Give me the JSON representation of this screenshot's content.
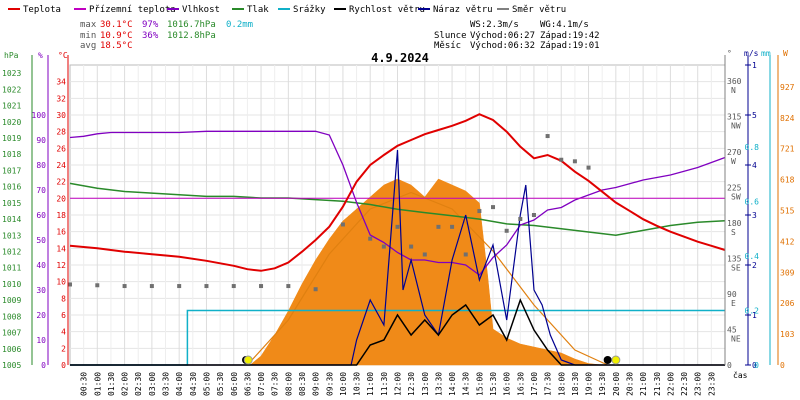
{
  "chart_data": {
    "type": "line",
    "title": "4.9.2024",
    "legend": [
      {
        "key": "teplota",
        "label": "Teplota",
        "color": "#e00000"
      },
      {
        "key": "prizemni",
        "label": "Přízemní teplota",
        "color": "#c000c0"
      },
      {
        "key": "vlhkost",
        "label": "Vlhkost",
        "color": "#8000c0"
      },
      {
        "key": "tlak",
        "label": "Tlak",
        "color": "#2a8a2a"
      },
      {
        "key": "srazky",
        "label": "Srážky",
        "color": "#10b0c8"
      },
      {
        "key": "rychlost",
        "label": "Rychlost větru",
        "color": "#000000"
      },
      {
        "key": "naraz",
        "label": "Náraz větru",
        "color": "#000090"
      },
      {
        "key": "smer",
        "label": "Směr větru",
        "color": "#808080"
      }
    ],
    "stats": {
      "max_label": "max",
      "max_temp": "30.1°C",
      "max_hum": "97%",
      "max_press": "1016.7hPa",
      "max_rain": "0.2mm",
      "min_label": "min",
      "min_temp": "10.9°C",
      "min_hum": "36%",
      "min_press": "1012.8hPa",
      "avg_label": "avg",
      "avg_temp": "18.5°C",
      "ws": "WS:2.3m/s",
      "wg": "WG:4.1m/s",
      "slunce": "Slunce",
      "slunce_rise": "Východ:06:27",
      "slunce_set": "Západ:19:42",
      "mesic": "Měsíc",
      "mesic_rise": "Východ:06:32",
      "mesic_set": "Západ:19:01"
    },
    "axes": {
      "hpa_label": "hPa",
      "pct_label": "%",
      "c_label": "°C",
      "hpa_ticks": [
        "1023",
        "1022",
        "1021",
        "1020",
        "1019",
        "1018",
        "1017",
        "1016",
        "1015",
        "1014",
        "1013",
        "1012",
        "1011",
        "1010",
        "1009",
        "1008",
        "1007",
        "1006",
        "1005"
      ],
      "pct_ticks": [
        "100",
        "90",
        "80",
        "70",
        "60",
        "50",
        "40",
        "30",
        "20",
        "10",
        "0"
      ],
      "c_ticks": [
        "34",
        "32",
        "30",
        "28",
        "26",
        "24",
        "22",
        "20",
        "18",
        "16",
        "14",
        "12",
        "10",
        "8",
        "6",
        "4",
        "2",
        "0"
      ],
      "deg_label": "°",
      "ms_label": "m/s",
      "mm_label": "mm",
      "w_label": "W",
      "dir_values": [
        360,
        315,
        270,
        225,
        180,
        135,
        90,
        45,
        0
      ],
      "dir_names": [
        "N",
        "NW",
        "W",
        "SW",
        "S",
        "SE",
        "E",
        "NE",
        ""
      ],
      "ms_ticks": [
        "1",
        "5",
        "4",
        "3",
        "2",
        "1",
        "0"
      ],
      "mm_ticks": [
        "~1",
        "0.8",
        "0.6",
        "0.4",
        "0.2",
        "0"
      ],
      "w_ticks": [
        "927",
        "824",
        "721",
        "618",
        "515",
        "412",
        "309",
        "206",
        "103",
        "0"
      ],
      "x_ticks": [
        "00:30",
        "01:00",
        "01:30",
        "02:00",
        "02:30",
        "03:00",
        "03:30",
        "04:00",
        "04:30",
        "05:00",
        "05:30",
        "06:00",
        "06:30",
        "07:00",
        "07:30",
        "08:00",
        "08:30",
        "09:00",
        "09:30",
        "10:00",
        "10:30",
        "11:00",
        "11:30",
        "12:00",
        "12:30",
        "13:00",
        "13:30",
        "14:00",
        "14:30",
        "15:00",
        "15:30",
        "16:00",
        "16:30",
        "17:00",
        "17:30",
        "18:00",
        "18:30",
        "19:00",
        "19:30",
        "20:00",
        "20:30",
        "21:00",
        "21:30",
        "22:00",
        "22:30",
        "23:00",
        "23:30"
      ],
      "x_label": "čas"
    },
    "series": {
      "teplota": [
        [
          0,
          14.3
        ],
        [
          1,
          14.0
        ],
        [
          2,
          13.6
        ],
        [
          3,
          13.3
        ],
        [
          4,
          13.0
        ],
        [
          5,
          12.5
        ],
        [
          6,
          11.9
        ],
        [
          6.5,
          11.5
        ],
        [
          7,
          11.3
        ],
        [
          7.5,
          11.6
        ],
        [
          8,
          12.3
        ],
        [
          8.5,
          13.6
        ],
        [
          9,
          15.0
        ],
        [
          9.5,
          16.6
        ],
        [
          10,
          19.0
        ],
        [
          10.5,
          22.0
        ],
        [
          11,
          24.0
        ],
        [
          11.5,
          25.2
        ],
        [
          12,
          26.3
        ],
        [
          12.5,
          27.0
        ],
        [
          13,
          27.7
        ],
        [
          13.5,
          28.2
        ],
        [
          14,
          28.7
        ],
        [
          14.5,
          29.3
        ],
        [
          15,
          30.1
        ],
        [
          15.5,
          29.4
        ],
        [
          16,
          28.0
        ],
        [
          16.5,
          26.2
        ],
        [
          17,
          24.8
        ],
        [
          17.5,
          25.2
        ],
        [
          18,
          24.5
        ],
        [
          18.5,
          23.2
        ],
        [
          19,
          22.1
        ],
        [
          19.5,
          20.8
        ],
        [
          20,
          19.5
        ],
        [
          20.5,
          18.5
        ],
        [
          21,
          17.5
        ],
        [
          21.5,
          16.7
        ],
        [
          22,
          16.0
        ],
        [
          22.5,
          15.4
        ],
        [
          23,
          14.8
        ],
        [
          23.5,
          14.3
        ],
        [
          24,
          13.8
        ]
      ],
      "prizemni": [
        [
          0,
          20
        ],
        [
          24,
          20
        ]
      ],
      "vlhkost": [
        [
          0,
          91
        ],
        [
          0.5,
          91.5
        ],
        [
          1,
          92.5
        ],
        [
          1.5,
          93
        ],
        [
          2,
          93
        ],
        [
          2.5,
          93
        ],
        [
          3,
          93
        ],
        [
          4,
          93
        ],
        [
          5,
          93.5
        ],
        [
          6,
          93.5
        ],
        [
          7,
          93.5
        ],
        [
          8,
          93.5
        ],
        [
          9,
          93.5
        ],
        [
          9.5,
          92
        ],
        [
          10,
          80
        ],
        [
          10.5,
          65
        ],
        [
          11,
          52
        ],
        [
          11.5,
          49
        ],
        [
          12,
          45
        ],
        [
          12.5,
          42
        ],
        [
          13,
          42
        ],
        [
          13.5,
          41
        ],
        [
          14,
          41
        ],
        [
          14.5,
          40
        ],
        [
          15,
          36
        ],
        [
          15.5,
          43
        ],
        [
          16,
          48
        ],
        [
          16.5,
          56
        ],
        [
          17,
          58
        ],
        [
          17.5,
          62
        ],
        [
          18,
          63
        ],
        [
          18.5,
          66
        ],
        [
          19,
          68
        ],
        [
          19.5,
          70
        ],
        [
          20,
          71
        ],
        [
          20.5,
          72.5
        ],
        [
          21,
          74
        ],
        [
          21.5,
          75
        ],
        [
          22,
          76
        ],
        [
          22.5,
          77.5
        ],
        [
          23,
          79
        ],
        [
          23.5,
          81
        ],
        [
          24,
          83
        ]
      ],
      "tlak": [
        [
          0,
          1016.2
        ],
        [
          1,
          1015.9
        ],
        [
          2,
          1015.7
        ],
        [
          3,
          1015.6
        ],
        [
          4,
          1015.5
        ],
        [
          5,
          1015.4
        ],
        [
          6,
          1015.4
        ],
        [
          7,
          1015.3
        ],
        [
          8,
          1015.3
        ],
        [
          9,
          1015.2
        ],
        [
          10,
          1015.1
        ],
        [
          11,
          1014.9
        ],
        [
          12,
          1014.6
        ],
        [
          13,
          1014.4
        ],
        [
          14,
          1014.2
        ],
        [
          15,
          1014.0
        ],
        [
          16,
          1013.7
        ],
        [
          17,
          1013.6
        ],
        [
          18,
          1013.4
        ],
        [
          19,
          1013.2
        ],
        [
          20,
          1013.0
        ],
        [
          21,
          1013.3
        ],
        [
          22,
          1013.6
        ],
        [
          23,
          1013.8
        ],
        [
          24,
          1013.9
        ]
      ],
      "srazky_mm": [
        [
          0,
          0
        ],
        [
          4.3,
          0
        ],
        [
          4.3,
          0.2
        ],
        [
          24,
          0.2
        ]
      ],
      "naraz_ms": [
        [
          0,
          0
        ],
        [
          10.3,
          0
        ],
        [
          10.5,
          0.5
        ],
        [
          11,
          1.3
        ],
        [
          11.5,
          0.8
        ],
        [
          12,
          4.3
        ],
        [
          12.2,
          1.5
        ],
        [
          12.5,
          2.1
        ],
        [
          13,
          1.0
        ],
        [
          13.5,
          0.6
        ],
        [
          14,
          2.1
        ],
        [
          14.5,
          3.0
        ],
        [
          15,
          1.7
        ],
        [
          15.5,
          2.4
        ],
        [
          16,
          0.9
        ],
        [
          16.5,
          3.0
        ],
        [
          16.7,
          3.6
        ],
        [
          17,
          1.5
        ],
        [
          17.3,
          1.2
        ],
        [
          17.6,
          0.6
        ],
        [
          18,
          0.1
        ],
        [
          18.5,
          0
        ],
        [
          24,
          0
        ]
      ],
      "rychlost_ms": [
        [
          0,
          0
        ],
        [
          10.5,
          0
        ],
        [
          11,
          0.4
        ],
        [
          11.5,
          0.5
        ],
        [
          12,
          1.0
        ],
        [
          12.5,
          0.6
        ],
        [
          13,
          0.9
        ],
        [
          13.5,
          0.6
        ],
        [
          14,
          1.0
        ],
        [
          14.5,
          1.2
        ],
        [
          15,
          0.8
        ],
        [
          15.5,
          1.0
        ],
        [
          16,
          0.5
        ],
        [
          16.5,
          1.3
        ],
        [
          17,
          0.7
        ],
        [
          17.5,
          0.3
        ],
        [
          18,
          0
        ],
        [
          24,
          0
        ]
      ],
      "smer_deg": [
        [
          0,
          102
        ],
        [
          1,
          101
        ],
        [
          2,
          100
        ],
        [
          3,
          100
        ],
        [
          4,
          100
        ],
        [
          5,
          100
        ],
        [
          6,
          100
        ],
        [
          7,
          100
        ],
        [
          8,
          100
        ],
        [
          9,
          96
        ],
        [
          10,
          178
        ],
        [
          11,
          160
        ],
        [
          11.5,
          150
        ],
        [
          12,
          175
        ],
        [
          12.5,
          150
        ],
        [
          13,
          140
        ],
        [
          13.5,
          175
        ],
        [
          14,
          175
        ],
        [
          14.5,
          140
        ],
        [
          15,
          195
        ],
        [
          15.5,
          200
        ],
        [
          16,
          170
        ],
        [
          16.5,
          185
        ],
        [
          17,
          190
        ],
        [
          17.5,
          290
        ],
        [
          18,
          260
        ],
        [
          18.5,
          258
        ],
        [
          19,
          250
        ]
      ],
      "zareni_w": [
        [
          6.6,
          0
        ],
        [
          7,
          30
        ],
        [
          7.5,
          100
        ],
        [
          8,
          180
        ],
        [
          8.5,
          270
        ],
        [
          9,
          350
        ],
        [
          9.5,
          420
        ],
        [
          10,
          480
        ],
        [
          10.5,
          520
        ],
        [
          11,
          560
        ],
        [
          11.5,
          600
        ],
        [
          12,
          620
        ],
        [
          12.5,
          600
        ],
        [
          13,
          560
        ],
        [
          13.5,
          620
        ],
        [
          14,
          600
        ],
        [
          14.5,
          580
        ],
        [
          15,
          540
        ],
        [
          15.3,
          300
        ],
        [
          15.5,
          120
        ],
        [
          16,
          90
        ],
        [
          16.5,
          70
        ],
        [
          17,
          60
        ],
        [
          17.5,
          50
        ],
        [
          18,
          40
        ],
        [
          18.5,
          20
        ],
        [
          19,
          5
        ],
        [
          19.5,
          0
        ]
      ],
      "zareni_teor_w": [
        [
          6.5,
          0
        ],
        [
          8,
          150
        ],
        [
          9.5,
          370
        ],
        [
          11,
          520
        ],
        [
          12.5,
          575
        ],
        [
          14,
          520
        ],
        [
          15.5,
          380
        ],
        [
          17,
          200
        ],
        [
          18.5,
          50
        ],
        [
          19.7,
          0
        ]
      ]
    }
  }
}
